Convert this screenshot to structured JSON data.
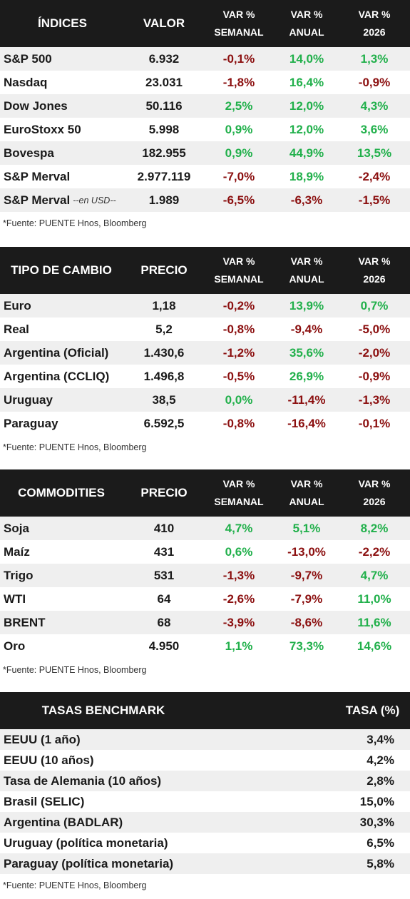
{
  "indices": {
    "headers": {
      "name": "ÍNDICES",
      "value": "VALOR",
      "wk_1": "VAR %",
      "wk_2": "SEMANAL",
      "yr_1": "VAR %",
      "yr_2": "ANUAL",
      "ytd_1": "VAR %",
      "ytd_2": "2026"
    },
    "rows": [
      {
        "name": "S&P 500",
        "note": "",
        "value": "6.932",
        "weekly": "-0,1%",
        "annual": "14,0%",
        "ytd": "1,3%"
      },
      {
        "name": "Nasdaq",
        "note": "",
        "value": "23.031",
        "weekly": "-1,8%",
        "annual": "16,4%",
        "ytd": "-0,9%"
      },
      {
        "name": "Dow Jones",
        "note": "",
        "value": "50.116",
        "weekly": "2,5%",
        "annual": "12,0%",
        "ytd": "4,3%"
      },
      {
        "name": "EuroStoxx 50",
        "note": "",
        "value": "5.998",
        "weekly": "0,9%",
        "annual": "12,0%",
        "ytd": "3,6%"
      },
      {
        "name": "Bovespa",
        "note": "",
        "value": "182.955",
        "weekly": "0,9%",
        "annual": "44,9%",
        "ytd": "13,5%"
      },
      {
        "name": "S&P Merval",
        "note": "",
        "value": "2.977.119",
        "weekly": "-7,0%",
        "annual": "18,9%",
        "ytd": "-2,4%"
      },
      {
        "name": "S&P Merval",
        "note": "--en USD--",
        "value": "1.989",
        "weekly": "-6,5%",
        "annual": "-6,3%",
        "ytd": "-1,5%"
      }
    ],
    "source": "*Fuente: PUENTE Hnos, Bloomberg"
  },
  "fx": {
    "headers": {
      "name": "TIPO DE CAMBIO",
      "value": "PRECIO",
      "wk_1": "VAR %",
      "wk_2": "SEMANAL",
      "yr_1": "VAR %",
      "yr_2": "ANUAL",
      "ytd_1": "VAR %",
      "ytd_2": "2026"
    },
    "rows": [
      {
        "name": "Euro",
        "value": "1,18",
        "weekly": "-0,2%",
        "annual": "13,9%",
        "ytd": "0,7%"
      },
      {
        "name": "Real",
        "value": "5,2",
        "weekly": "-0,8%",
        "annual": "-9,4%",
        "ytd": "-5,0%"
      },
      {
        "name": "Argentina (Oficial)",
        "value": "1.430,6",
        "weekly": "-1,2%",
        "annual": "35,6%",
        "ytd": "-2,0%"
      },
      {
        "name": "Argentina (CCLIQ)",
        "value": "1.496,8",
        "weekly": "-0,5%",
        "annual": "26,9%",
        "ytd": "-0,9%"
      },
      {
        "name": "Uruguay",
        "value": "38,5",
        "weekly": "0,0%",
        "annual": "-11,4%",
        "ytd": "-1,3%"
      },
      {
        "name": "Paraguay",
        "value": "6.592,5",
        "weekly": "-0,8%",
        "annual": "-16,4%",
        "ytd": "-0,1%"
      }
    ],
    "source": "*Fuente: PUENTE Hnos, Bloomberg"
  },
  "commodities": {
    "headers": {
      "name": "COMMODITIES",
      "value": "PRECIO",
      "wk_1": "VAR %",
      "wk_2": "SEMANAL",
      "yr_1": "VAR %",
      "yr_2": "ANUAL",
      "ytd_1": "VAR %",
      "ytd_2": "2026"
    },
    "rows": [
      {
        "name": "Soja",
        "value": "410",
        "weekly": "4,7%",
        "annual": "5,1%",
        "ytd": "8,2%"
      },
      {
        "name": "Maíz",
        "value": "431",
        "weekly": "0,6%",
        "annual": "-13,0%",
        "ytd": "-2,2%"
      },
      {
        "name": "Trigo",
        "value": "531",
        "weekly": "-1,3%",
        "annual": "-9,7%",
        "ytd": "4,7%"
      },
      {
        "name": "WTI",
        "value": "64",
        "weekly": "-2,6%",
        "annual": "-7,9%",
        "ytd": "11,0%"
      },
      {
        "name": "BRENT",
        "value": "68",
        "weekly": "-3,9%",
        "annual": "-8,6%",
        "ytd": "11,6%"
      },
      {
        "name": "Oro",
        "value": "4.950",
        "weekly": "1,1%",
        "annual": "73,3%",
        "ytd": "14,6%"
      }
    ],
    "source": "*Fuente: PUENTE Hnos, Bloomberg"
  },
  "rates": {
    "headers": {
      "name": "TASAS BENCHMARK",
      "value": "TASA (%)"
    },
    "rows": [
      {
        "name": "EEUU (1 año)",
        "value": "3,4%"
      },
      {
        "name": "EEUU (10 años)",
        "value": "4,2%"
      },
      {
        "name": "Tasa de Alemania (10 años)",
        "value": "2,8%"
      },
      {
        "name": "Brasil (SELIC)",
        "value": "15,0%"
      },
      {
        "name": "Argentina (BADLAR)",
        "value": "30,3%"
      },
      {
        "name": "Uruguay (política monetaria)",
        "value": "6,5%"
      },
      {
        "name": "Paraguay (política monetaria)",
        "value": "5,8%"
      }
    ],
    "source": "*Fuente: PUENTE Hnos, Bloomberg"
  },
  "colors": {
    "positive": "#21b04b",
    "negative": "#8b0f0f",
    "header_bg": "#1b1b1b",
    "row_alt_bg": "#efefef"
  }
}
